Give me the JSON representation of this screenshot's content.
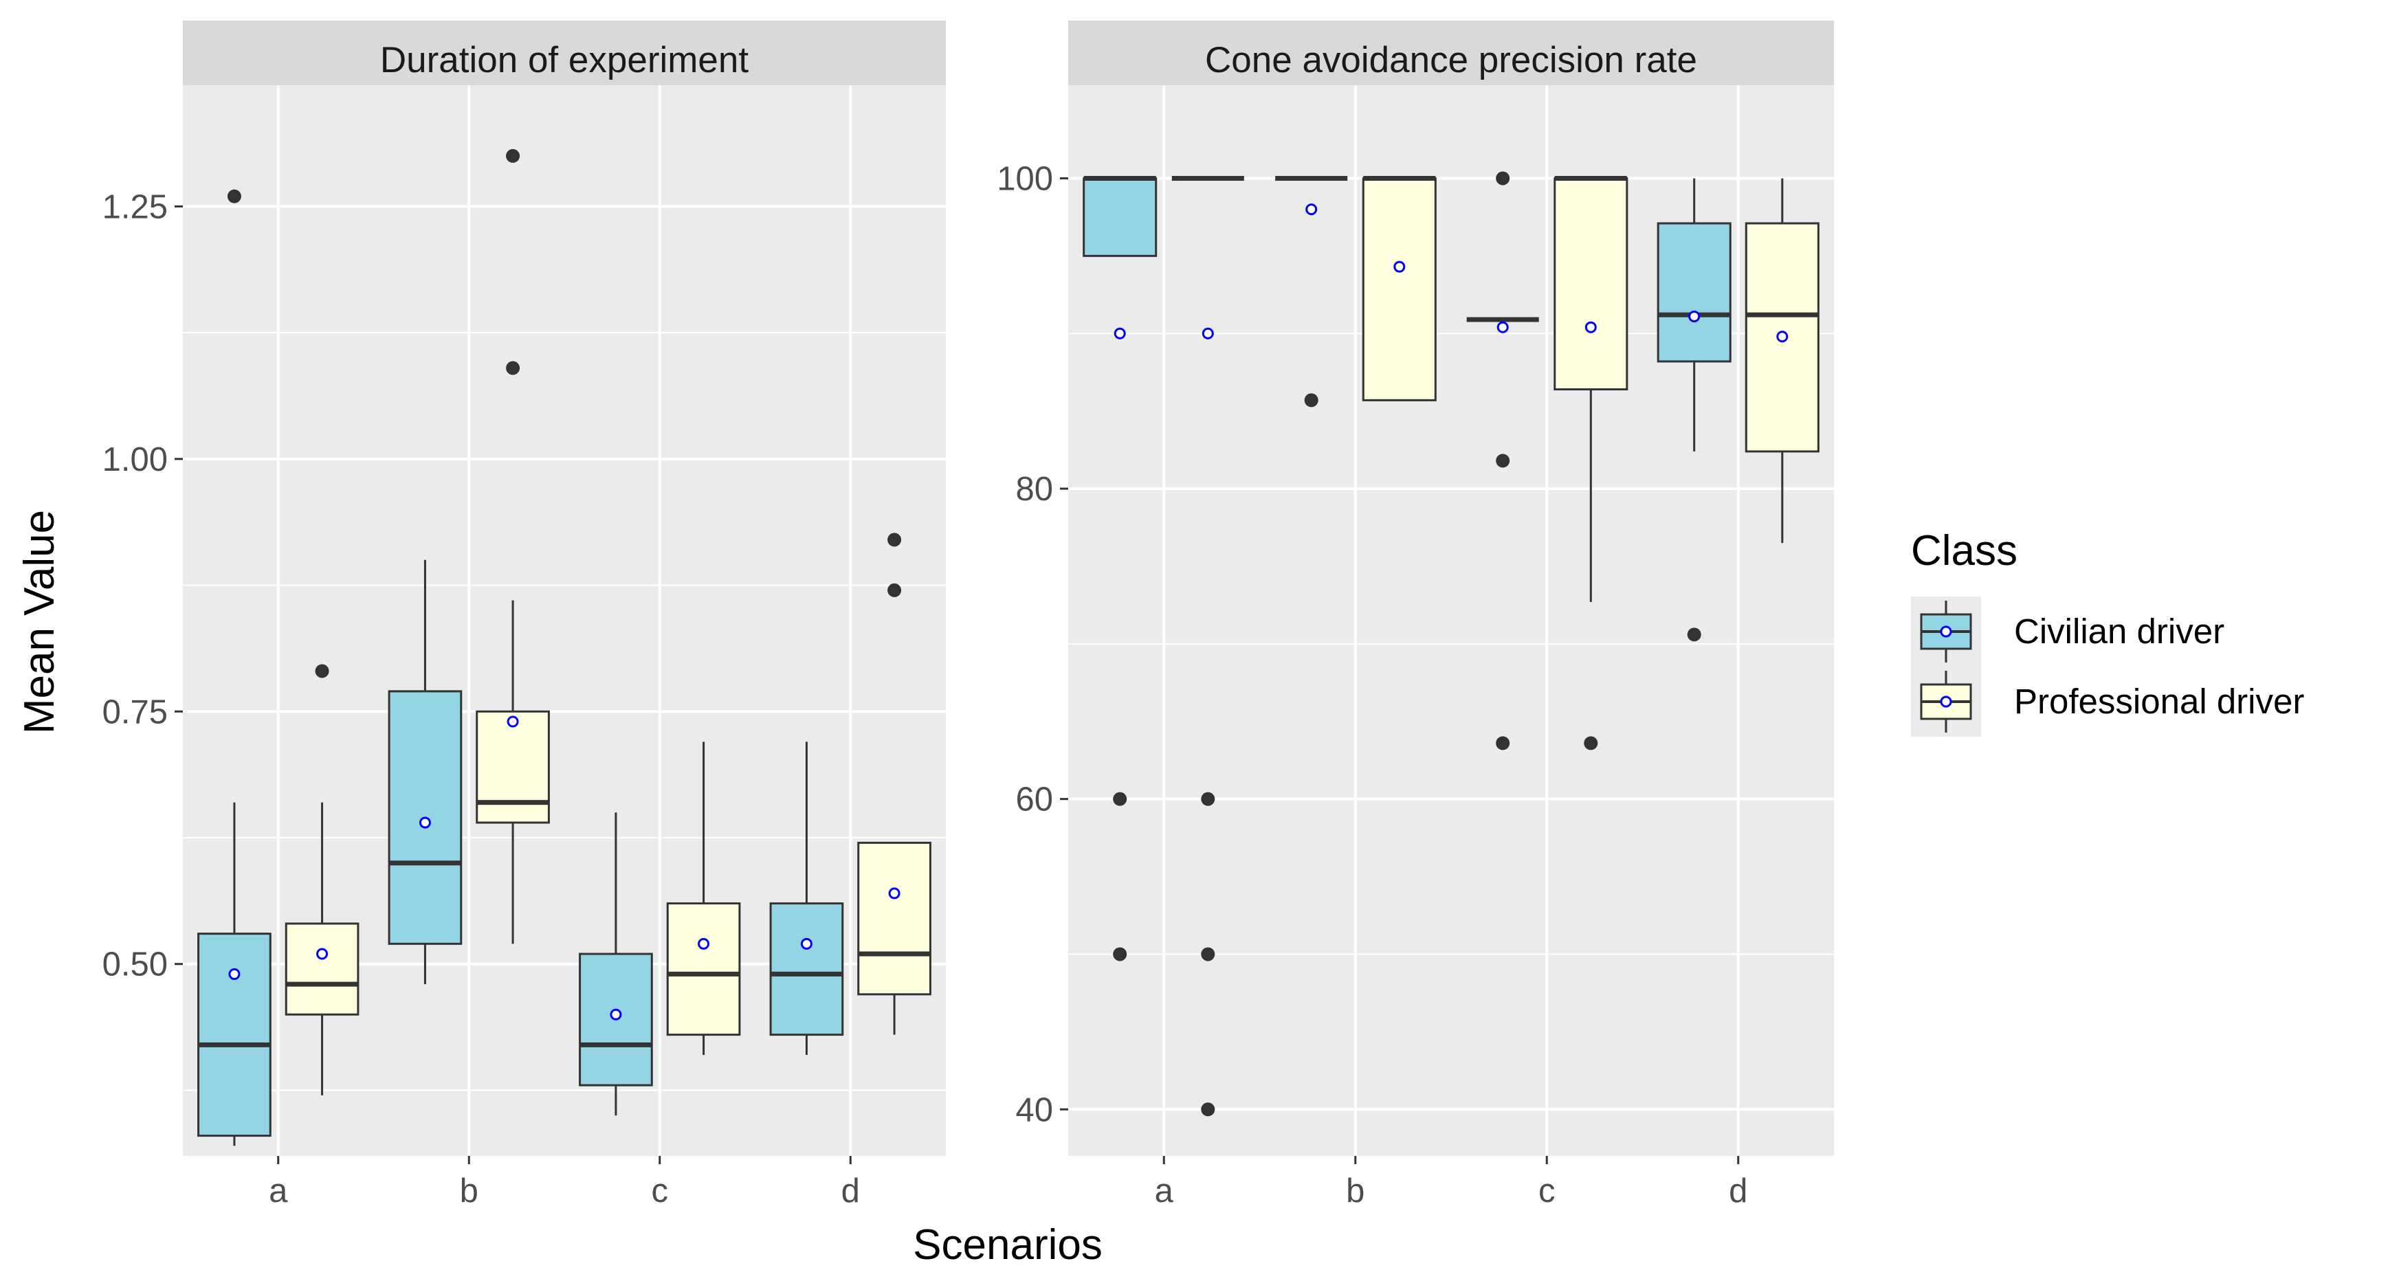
{
  "chart_data": {
    "type": "boxplot",
    "xlabel": "Scenarios",
    "ylabel": "Mean Value",
    "categories": [
      "a",
      "b",
      "c",
      "d"
    ],
    "legend": {
      "title": "Class",
      "position": "right",
      "entries": [
        {
          "name": "Civilian driver",
          "color": "#94D5E5"
        },
        {
          "name": "Professional driver",
          "color": "#FFFFE0"
        }
      ]
    },
    "colors": {
      "panel_bg": "#EBEBEB",
      "strip_bg": "#D9D9D9",
      "grid": "#FFFFFF",
      "box_line": "#333333",
      "mean_marker": "#0000FF",
      "outlier": "#333333"
    },
    "panels": [
      {
        "title": "Duration of experiment",
        "ylim": [
          0.31,
          1.37
        ],
        "yticks": [
          0.5,
          0.75,
          1.0,
          1.25
        ],
        "ytick_labels": [
          "0.50",
          "0.75",
          "1.00",
          "1.25"
        ],
        "groups": [
          {
            "category": "a",
            "series": "Civilian driver",
            "lower": 0.32,
            "q1": 0.33,
            "median": 0.42,
            "q3": 0.53,
            "upper": 0.66,
            "mean": 0.49,
            "outliers": [
              1.26
            ]
          },
          {
            "category": "a",
            "series": "Professional driver",
            "lower": 0.37,
            "q1": 0.45,
            "median": 0.48,
            "q3": 0.54,
            "upper": 0.66,
            "mean": 0.51,
            "outliers": [
              0.79
            ]
          },
          {
            "category": "b",
            "series": "Civilian driver",
            "lower": 0.48,
            "q1": 0.52,
            "median": 0.6,
            "q3": 0.77,
            "upper": 0.9,
            "mean": 0.64,
            "outliers": []
          },
          {
            "category": "b",
            "series": "Professional driver",
            "lower": 0.52,
            "q1": 0.64,
            "median": 0.66,
            "q3": 0.75,
            "upper": 0.86,
            "mean": 0.74,
            "outliers": [
              1.3,
              1.09
            ]
          },
          {
            "category": "c",
            "series": "Civilian driver",
            "lower": 0.35,
            "q1": 0.38,
            "median": 0.42,
            "q3": 0.51,
            "upper": 0.65,
            "mean": 0.45,
            "outliers": []
          },
          {
            "category": "c",
            "series": "Professional driver",
            "lower": 0.41,
            "q1": 0.43,
            "median": 0.49,
            "q3": 0.56,
            "upper": 0.72,
            "mean": 0.52,
            "outliers": []
          },
          {
            "category": "d",
            "series": "Civilian driver",
            "lower": 0.41,
            "q1": 0.43,
            "median": 0.49,
            "q3": 0.56,
            "upper": 0.72,
            "mean": 0.52,
            "outliers": []
          },
          {
            "category": "d",
            "series": "Professional driver",
            "lower": 0.43,
            "q1": 0.47,
            "median": 0.51,
            "q3": 0.62,
            "upper": 0.62,
            "mean": 0.57,
            "outliers": [
              0.92,
              0.87
            ]
          }
        ]
      },
      {
        "title": "Cone avoidance precision rate",
        "ylim": [
          37,
          106
        ],
        "yticks": [
          40,
          60,
          80,
          100
        ],
        "ytick_labels": [
          "40",
          "60",
          "80",
          "100"
        ],
        "groups": [
          {
            "category": "a",
            "series": "Civilian driver",
            "lower": 95,
            "q1": 95,
            "median": 100,
            "q3": 100,
            "upper": 100,
            "mean": 90,
            "outliers": [
              60,
              50
            ]
          },
          {
            "category": "a",
            "series": "Professional driver",
            "lower": 100,
            "q1": 100,
            "median": 100,
            "q3": 100,
            "upper": 100,
            "mean": 90,
            "outliers": [
              60,
              50,
              40
            ]
          },
          {
            "category": "b",
            "series": "Civilian driver",
            "lower": 100,
            "q1": 100,
            "median": 100,
            "q3": 100,
            "upper": 100,
            "mean": 98,
            "outliers": [
              85.7
            ]
          },
          {
            "category": "b",
            "series": "Professional driver",
            "lower": 85.7,
            "q1": 85.7,
            "median": 100,
            "q3": 100,
            "upper": 100,
            "mean": 94.3,
            "outliers": []
          },
          {
            "category": "c",
            "series": "Civilian driver",
            "lower": 90.9,
            "q1": 90.9,
            "median": 90.9,
            "q3": 90.9,
            "upper": 90.9,
            "mean": 90.4,
            "outliers": [
              100,
              81.8,
              63.6
            ]
          },
          {
            "category": "c",
            "series": "Professional driver",
            "lower": 72.7,
            "q1": 86.4,
            "median": 100,
            "q3": 100,
            "upper": 100,
            "mean": 90.4,
            "outliers": [
              63.6
            ]
          },
          {
            "category": "d",
            "series": "Civilian driver",
            "lower": 82.4,
            "q1": 88.2,
            "median": 91.2,
            "q3": 97.1,
            "upper": 100,
            "mean": 91.1,
            "outliers": [
              70.6
            ]
          },
          {
            "category": "d",
            "series": "Professional driver",
            "lower": 76.5,
            "q1": 82.4,
            "median": 91.2,
            "q3": 97.1,
            "upper": 100,
            "mean": 89.8,
            "outliers": []
          }
        ]
      }
    ]
  }
}
